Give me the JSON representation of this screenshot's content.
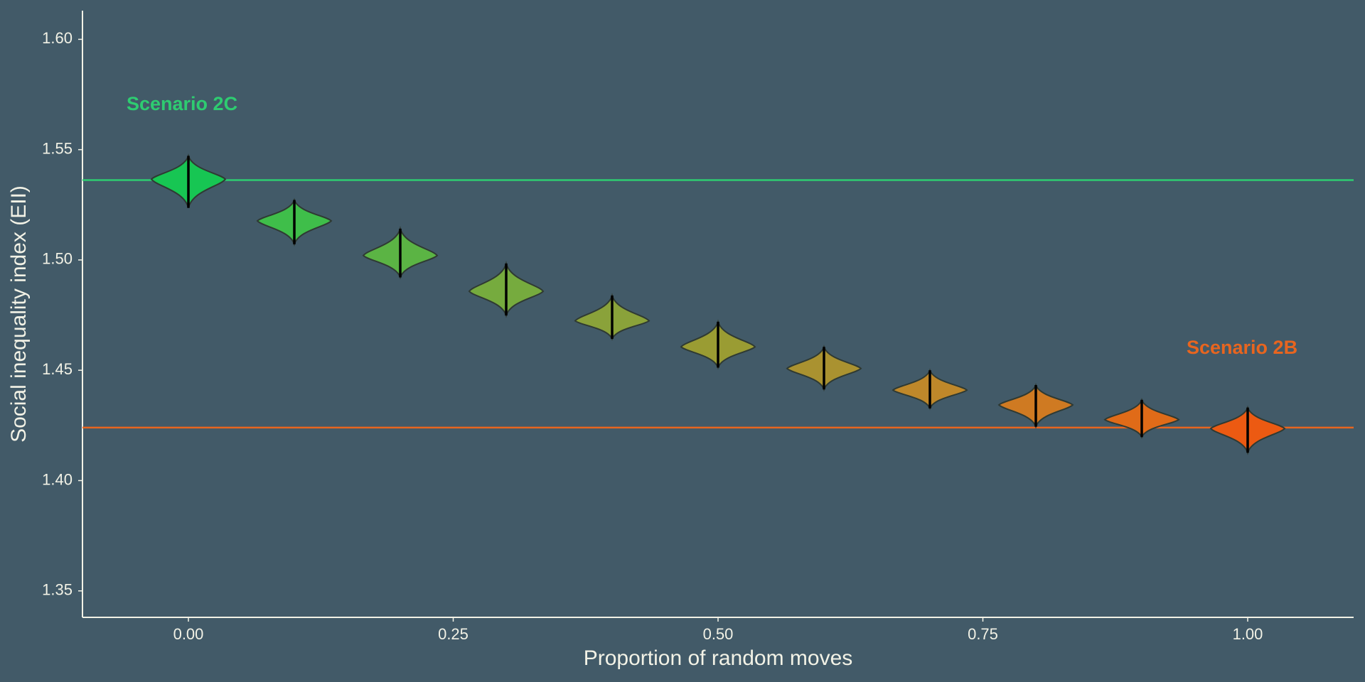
{
  "chart_data": {
    "type": "violin",
    "x_label": "Proportion of random moves",
    "y_label": "Social inequality index (EII)",
    "x": [
      0,
      0.1,
      0.2,
      0.3,
      0.4,
      0.5,
      0.6,
      0.7,
      0.8,
      0.9,
      1.0
    ],
    "violins": [
      {
        "low": 1.5236,
        "peak": 1.5366,
        "high": 1.5472,
        "color": "#17c653"
      },
      {
        "low": 1.5071,
        "peak": 1.5177,
        "high": 1.5272,
        "color": "#3fbe4a"
      },
      {
        "low": 1.4921,
        "peak": 1.502,
        "high": 1.5142,
        "color": "#5bb444"
      },
      {
        "low": 1.4748,
        "peak": 1.4858,
        "high": 1.4984,
        "color": "#76ab3e"
      },
      {
        "low": 1.4642,
        "peak": 1.4724,
        "high": 1.4839,
        "color": "#8aa23a"
      },
      {
        "low": 1.4512,
        "peak": 1.4606,
        "high": 1.472,
        "color": "#9a9c33"
      },
      {
        "low": 1.4413,
        "peak": 1.4508,
        "high": 1.4606,
        "color": "#aa9230"
      },
      {
        "low": 1.4327,
        "peak": 1.441,
        "high": 1.45,
        "color": "#bf882a"
      },
      {
        "low": 1.4244,
        "peak": 1.4343,
        "high": 1.4433,
        "color": "#cf7a22"
      },
      {
        "low": 1.4197,
        "peak": 1.4276,
        "high": 1.4366,
        "color": "#e06b18"
      },
      {
        "low": 1.4126,
        "peak": 1.4236,
        "high": 1.4331,
        "color": "#ec5a12"
      }
    ],
    "reference_lines": [
      {
        "value": 1.5362,
        "color": "#2ecc71"
      },
      {
        "value": 1.424,
        "color": "#e8651f"
      }
    ],
    "annotations": [
      {
        "text": "Scenario 2C",
        "color": "#2ecc71"
      },
      {
        "text": "Scenario 2B",
        "color": "#e8651f"
      }
    ],
    "xlim": [
      -0.1,
      1.1
    ],
    "ylim": [
      1.338,
      1.613
    ],
    "xticks": [
      {
        "value": 0,
        "label": "0.00"
      },
      0.25,
      {
        "value": 0.5,
        "label": "0.50"
      },
      0.75,
      {
        "value": 1,
        "label": "1.00"
      }
    ],
    "yticks": [
      1.35,
      {
        "value": 1.4,
        "label": "1.40"
      },
      1.45,
      {
        "value": 1.5,
        "label": "1.50"
      },
      1.55,
      {
        "value": 1.6,
        "label": "1.60"
      }
    ],
    "grid": false
  }
}
